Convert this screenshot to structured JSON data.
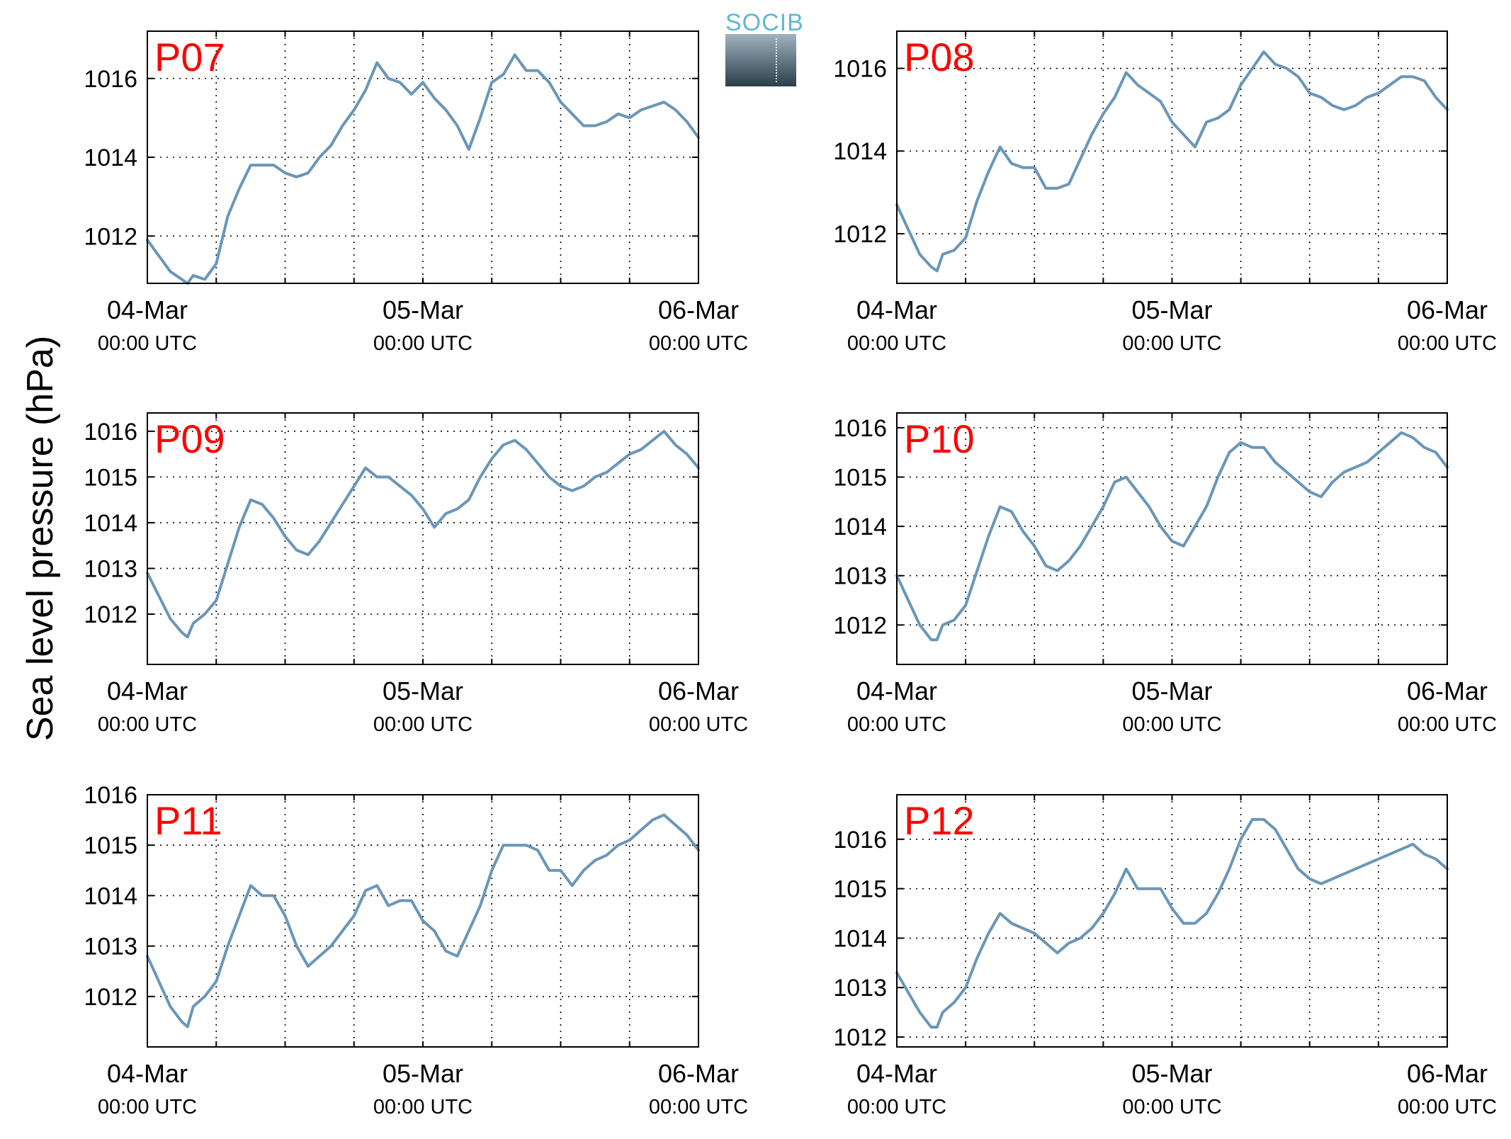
{
  "figure": {
    "ylabel": "Sea level pressure (hPa)",
    "logo_text": "SOCIB",
    "line_color": "#6a96b8",
    "label_color": "#ff0000"
  },
  "chart_data": [
    {
      "type": "line",
      "title": "P07",
      "x_ticks": [
        "04-Mar",
        "05-Mar",
        "06-Mar"
      ],
      "x_tick_sublabel": "00:00 UTC",
      "xlim_hours": [
        0,
        48
      ],
      "grid": true,
      "ylim": [
        1010.8,
        1017.2
      ],
      "yticks": [
        1012,
        1014,
        1016
      ],
      "series": [
        {
          "x_hours": [
            0,
            1,
            2,
            3,
            3.5,
            4,
            5,
            6,
            7,
            8,
            9,
            10,
            11,
            12,
            13,
            14,
            15,
            16,
            17,
            18,
            19,
            20,
            21,
            22,
            23,
            24,
            25,
            26,
            27,
            28,
            29,
            30,
            31,
            32,
            33,
            34,
            35,
            36,
            37,
            38,
            39,
            40,
            41,
            42,
            43,
            44,
            45,
            46,
            47,
            48
          ],
          "values": [
            1011.9,
            1011.5,
            1011.1,
            1010.9,
            1010.8,
            1011.0,
            1010.9,
            1011.3,
            1012.5,
            1013.2,
            1013.8,
            1013.8,
            1013.8,
            1013.6,
            1013.5,
            1013.6,
            1014.0,
            1014.3,
            1014.8,
            1015.2,
            1015.7,
            1016.4,
            1016.0,
            1015.9,
            1015.6,
            1015.9,
            1015.5,
            1015.2,
            1014.8,
            1014.2,
            1015.0,
            1015.9,
            1016.1,
            1016.6,
            1016.2,
            1016.2,
            1015.9,
            1015.4,
            1015.1,
            1014.8,
            1014.8,
            1014.9,
            1015.1,
            1015.0,
            1015.2,
            1015.3,
            1015.4,
            1015.2,
            1014.9,
            1014.5
          ]
        }
      ]
    },
    {
      "type": "line",
      "title": "P08",
      "x_ticks": [
        "04-Mar",
        "05-Mar",
        "06-Mar"
      ],
      "x_tick_sublabel": "00:00 UTC",
      "xlim_hours": [
        0,
        48
      ],
      "grid": true,
      "ylim": [
        1010.8,
        1016.9
      ],
      "yticks": [
        1012,
        1014,
        1016
      ],
      "series": [
        {
          "x_hours": [
            0,
            1,
            2,
            3,
            3.5,
            4,
            5,
            6,
            7,
            8,
            9,
            10,
            11,
            12,
            13,
            14,
            15,
            16,
            17,
            18,
            19,
            20,
            21,
            22,
            23,
            24,
            25,
            26,
            27,
            28,
            29,
            30,
            31,
            32,
            33,
            34,
            35,
            36,
            37,
            38,
            39,
            40,
            41,
            42,
            43,
            44,
            45,
            46,
            47,
            48
          ],
          "values": [
            1012.7,
            1012.1,
            1011.5,
            1011.2,
            1011.1,
            1011.5,
            1011.6,
            1011.9,
            1012.8,
            1013.5,
            1014.1,
            1013.7,
            1013.6,
            1013.6,
            1013.1,
            1013.1,
            1013.2,
            1013.8,
            1014.4,
            1014.9,
            1015.3,
            1015.9,
            1015.6,
            1015.4,
            1015.2,
            1014.7,
            1014.4,
            1014.1,
            1014.7,
            1014.8,
            1015.0,
            1015.6,
            1016.0,
            1016.4,
            1016.1,
            1016.0,
            1015.8,
            1015.4,
            1015.3,
            1015.1,
            1015.0,
            1015.1,
            1015.3,
            1015.4,
            1015.6,
            1015.8,
            1015.8,
            1015.7,
            1015.3,
            1015.0
          ]
        }
      ]
    },
    {
      "type": "line",
      "title": "P09",
      "x_ticks": [
        "04-Mar",
        "05-Mar",
        "06-Mar"
      ],
      "x_tick_sublabel": "00:00 UTC",
      "xlim_hours": [
        0,
        48
      ],
      "grid": true,
      "ylim": [
        1010.9,
        1016.4
      ],
      "yticks": [
        1012,
        1013,
        1014,
        1015,
        1016
      ],
      "series": [
        {
          "x_hours": [
            0,
            1,
            2,
            3,
            3.5,
            4,
            5,
            6,
            7,
            8,
            9,
            10,
            11,
            12,
            13,
            14,
            15,
            16,
            17,
            18,
            19,
            20,
            21,
            22,
            23,
            24,
            25,
            26,
            27,
            28,
            29,
            30,
            31,
            32,
            33,
            34,
            35,
            36,
            37,
            38,
            39,
            40,
            41,
            42,
            43,
            44,
            45,
            46,
            47,
            48
          ],
          "values": [
            1012.9,
            1012.4,
            1011.9,
            1011.6,
            1011.5,
            1011.8,
            1012.0,
            1012.3,
            1013.1,
            1013.9,
            1014.5,
            1014.4,
            1014.1,
            1013.7,
            1013.4,
            1013.3,
            1013.6,
            1014.0,
            1014.4,
            1014.8,
            1015.2,
            1015.0,
            1015.0,
            1014.8,
            1014.6,
            1014.3,
            1013.9,
            1014.2,
            1014.3,
            1014.5,
            1015.0,
            1015.4,
            1015.7,
            1015.8,
            1015.6,
            1015.3,
            1015.0,
            1014.8,
            1014.7,
            1014.8,
            1015.0,
            1015.1,
            1015.3,
            1015.5,
            1015.6,
            1015.8,
            1016.0,
            1015.7,
            1015.5,
            1015.2
          ]
        }
      ]
    },
    {
      "type": "line",
      "title": "P10",
      "x_ticks": [
        "04-Mar",
        "05-Mar",
        "06-Mar"
      ],
      "x_tick_sublabel": "00:00 UTC",
      "xlim_hours": [
        0,
        48
      ],
      "grid": true,
      "ylim": [
        1011.2,
        1016.3
      ],
      "yticks": [
        1012,
        1013,
        1014,
        1015,
        1016
      ],
      "series": [
        {
          "x_hours": [
            0,
            1,
            2,
            3,
            3.5,
            4,
            5,
            6,
            7,
            8,
            9,
            10,
            11,
            12,
            13,
            14,
            15,
            16,
            17,
            18,
            19,
            20,
            21,
            22,
            23,
            24,
            25,
            26,
            27,
            28,
            29,
            30,
            31,
            32,
            33,
            34,
            35,
            36,
            37,
            38,
            39,
            40,
            41,
            42,
            43,
            44,
            45,
            46,
            47,
            48
          ],
          "values": [
            1013.0,
            1012.5,
            1012.0,
            1011.7,
            1011.7,
            1012.0,
            1012.1,
            1012.4,
            1013.1,
            1013.8,
            1014.4,
            1014.3,
            1013.9,
            1013.6,
            1013.2,
            1013.1,
            1013.3,
            1013.6,
            1014.0,
            1014.4,
            1014.9,
            1015.0,
            1014.7,
            1014.4,
            1014.0,
            1013.7,
            1013.6,
            1014.0,
            1014.4,
            1015.0,
            1015.5,
            1015.7,
            1015.6,
            1015.6,
            1015.3,
            1015.1,
            1014.9,
            1014.7,
            1014.6,
            1014.9,
            1015.1,
            1015.2,
            1015.3,
            1015.5,
            1015.7,
            1015.9,
            1015.8,
            1015.6,
            1015.5,
            1015.2
          ]
        }
      ]
    },
    {
      "type": "line",
      "title": "P11",
      "x_ticks": [
        "04-Mar",
        "05-Mar",
        "06-Mar"
      ],
      "x_tick_sublabel": "00:00 UTC",
      "xlim_hours": [
        0,
        48
      ],
      "grid": true,
      "ylim": [
        1011.0,
        1016.0
      ],
      "yticks": [
        1012,
        1013,
        1014,
        1015,
        1016
      ],
      "series": [
        {
          "x_hours": [
            0,
            1,
            2,
            3,
            3.5,
            4,
            5,
            6,
            7,
            8,
            9,
            10,
            11,
            12,
            13,
            14,
            15,
            16,
            17,
            18,
            19,
            20,
            21,
            22,
            23,
            24,
            25,
            26,
            27,
            28,
            29,
            30,
            31,
            32,
            33,
            34,
            35,
            36,
            37,
            38,
            39,
            40,
            41,
            42,
            43,
            44,
            45,
            46,
            47,
            48
          ],
          "values": [
            1012.8,
            1012.3,
            1011.8,
            1011.5,
            1011.4,
            1011.8,
            1012.0,
            1012.3,
            1013.0,
            1013.6,
            1014.2,
            1014.0,
            1014.0,
            1013.6,
            1013.0,
            1012.6,
            1012.8,
            1013.0,
            1013.3,
            1013.6,
            1014.1,
            1014.2,
            1013.8,
            1013.9,
            1013.9,
            1013.5,
            1013.3,
            1012.9,
            1012.8,
            1013.3,
            1013.8,
            1014.5,
            1015.0,
            1015.0,
            1015.0,
            1014.9,
            1014.5,
            1014.5,
            1014.2,
            1014.5,
            1014.7,
            1014.8,
            1015.0,
            1015.1,
            1015.3,
            1015.5,
            1015.6,
            1015.4,
            1015.2,
            1014.9
          ]
        }
      ]
    },
    {
      "type": "line",
      "title": "P12",
      "x_ticks": [
        "04-Mar",
        "05-Mar",
        "06-Mar"
      ],
      "x_tick_sublabel": "00:00 UTC",
      "xlim_hours": [
        0,
        48
      ],
      "grid": true,
      "ylim": [
        1011.8,
        1016.9
      ],
      "yticks": [
        1012,
        1013,
        1014,
        1015,
        1016
      ],
      "series": [
        {
          "x_hours": [
            0,
            1,
            2,
            3,
            3.5,
            4,
            5,
            6,
            7,
            8,
            9,
            10,
            11,
            12,
            13,
            14,
            15,
            16,
            17,
            18,
            19,
            20,
            21,
            22,
            23,
            24,
            25,
            26,
            27,
            28,
            29,
            30,
            31,
            32,
            33,
            34,
            35,
            36,
            37,
            38,
            39,
            40,
            41,
            42,
            43,
            44,
            45,
            46,
            47,
            48
          ],
          "values": [
            1013.3,
            1012.9,
            1012.5,
            1012.2,
            1012.2,
            1012.5,
            1012.7,
            1013.0,
            1013.6,
            1014.1,
            1014.5,
            1014.3,
            1014.2,
            1014.1,
            1013.9,
            1013.7,
            1013.9,
            1014.0,
            1014.2,
            1014.5,
            1014.9,
            1015.4,
            1015.0,
            1015.0,
            1015.0,
            1014.6,
            1014.3,
            1014.3,
            1014.5,
            1014.9,
            1015.4,
            1016.0,
            1016.4,
            1016.4,
            1016.2,
            1015.8,
            1015.4,
            1015.2,
            1015.1,
            1015.2,
            1015.3,
            1015.4,
            1015.5,
            1015.6,
            1015.7,
            1015.8,
            1015.9,
            1015.7,
            1015.6,
            1015.4
          ]
        }
      ]
    }
  ]
}
